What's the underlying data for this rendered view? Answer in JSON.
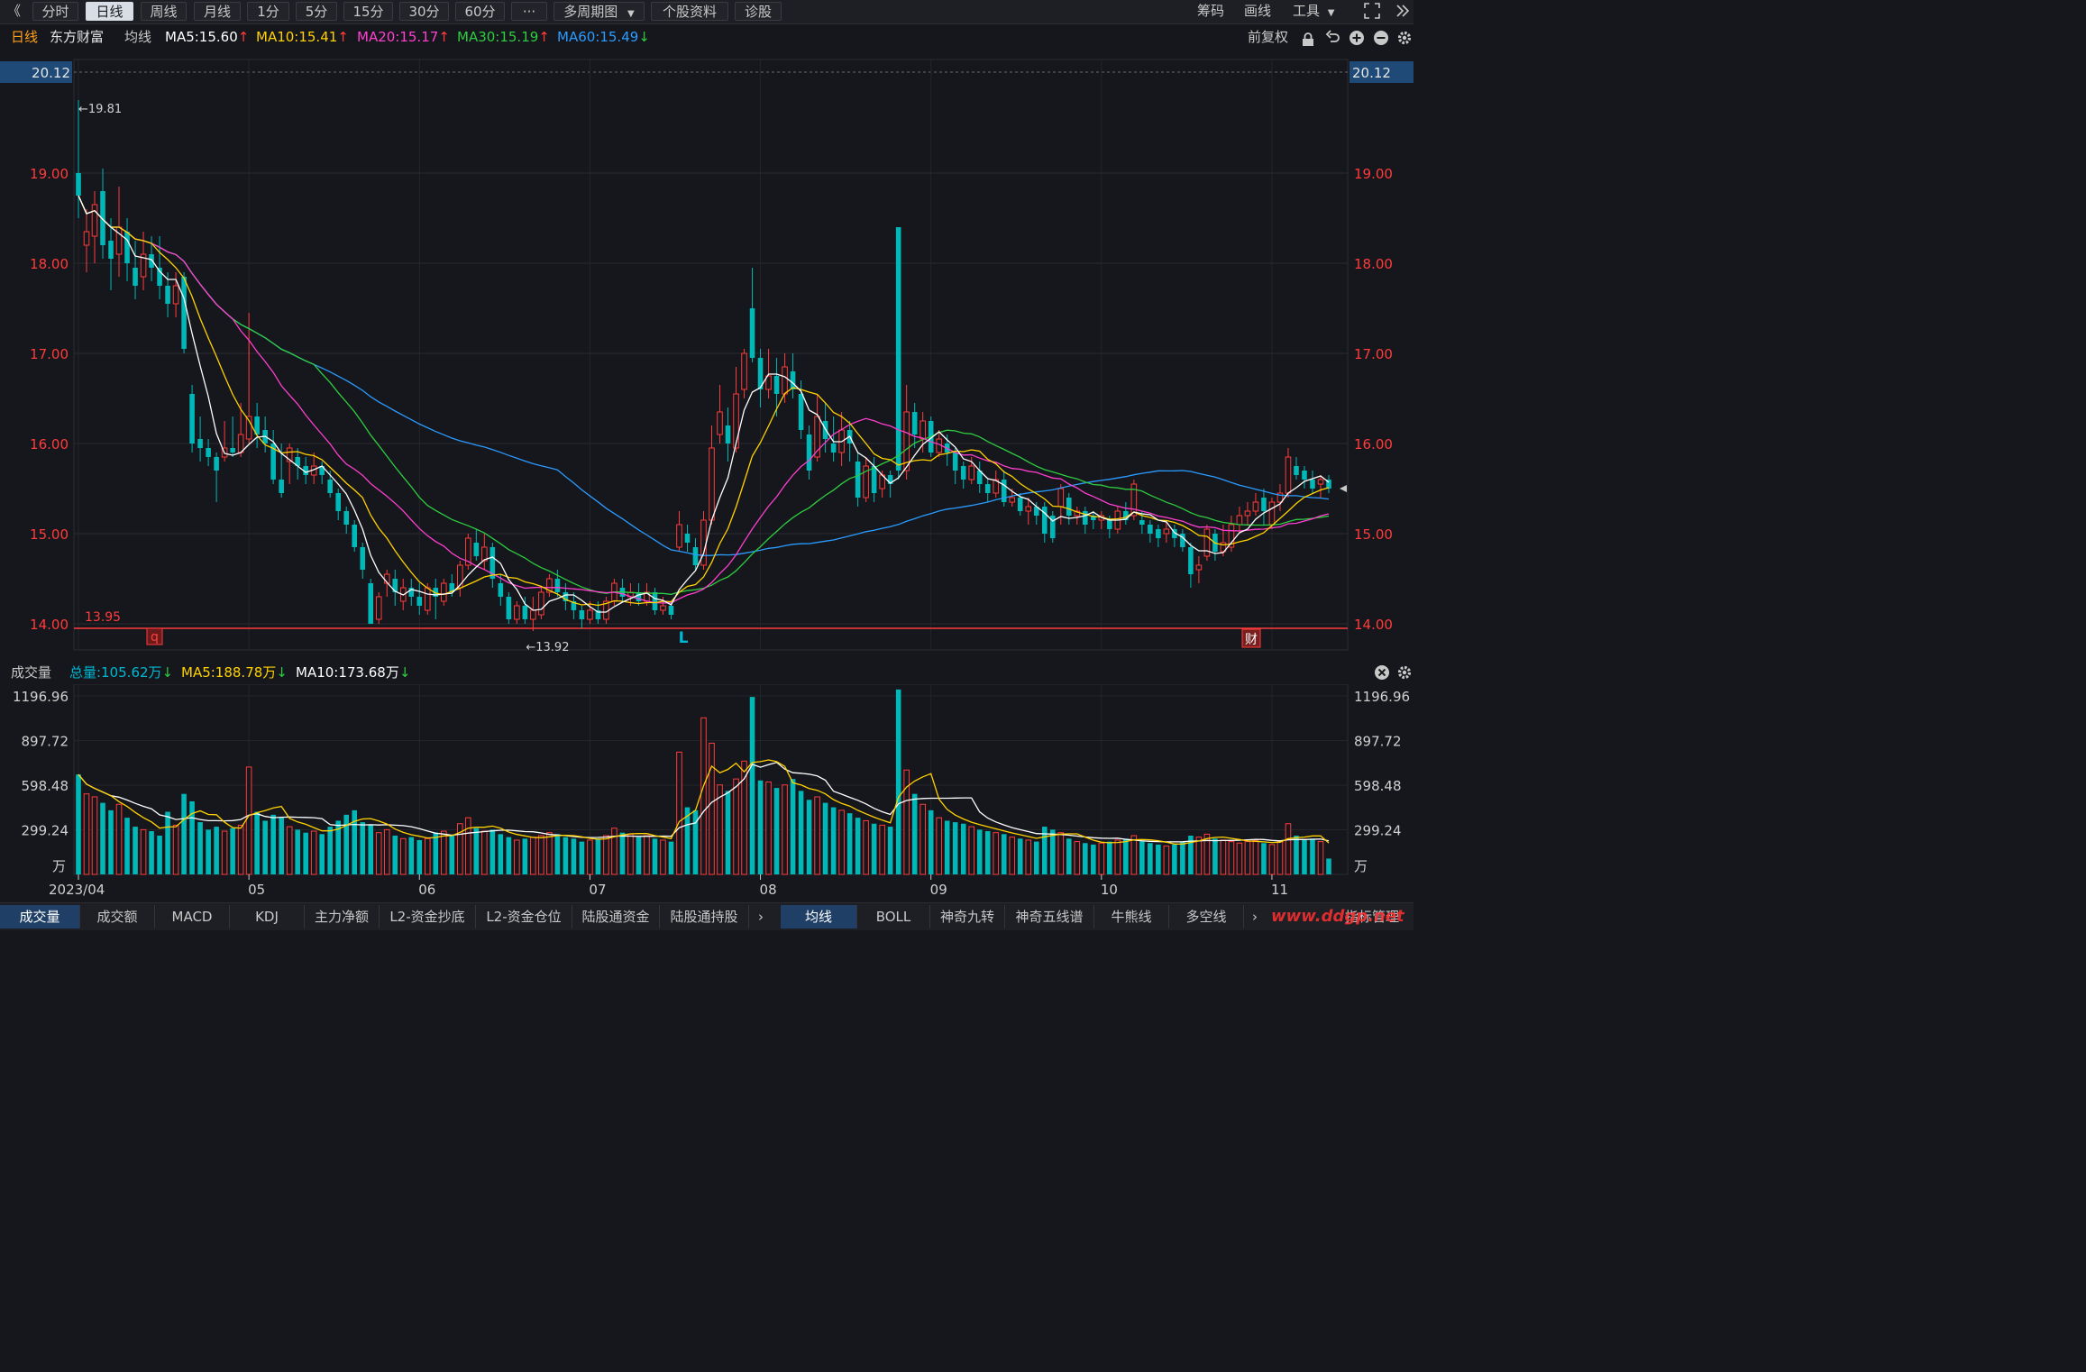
{
  "toolbar": {
    "left_nav": "《",
    "periods": [
      "分时",
      "日线",
      "周线",
      "月线",
      "1分",
      "5分",
      "15分",
      "30分",
      "60分"
    ],
    "more": "···",
    "multi_period": "多周期图",
    "stock_info": "个股资料",
    "diagnose": "诊股",
    "chips": "筹码",
    "draw_line": "画线",
    "tools": "工具"
  },
  "ma_row": {
    "period": "日线",
    "stock_name": "东方财富",
    "avg_label": "均线",
    "ma5": "MA5:15.60",
    "ma10": "MA10:15.41",
    "ma20": "MA20:15.17",
    "ma30": "MA30:15.19",
    "ma60": "MA60:15.49",
    "adjust": "前复权"
  },
  "price_axis": {
    "ticks": [
      "20.12",
      "19.00",
      "18.00",
      "17.00",
      "16.00",
      "15.00",
      "14.00"
    ],
    "current_right": "20.12"
  },
  "annotations": {
    "high": "←19.81",
    "low": "←13.92",
    "support": "13.95",
    "marker_q": "q",
    "marker_l": "L",
    "marker_cai": "财"
  },
  "vol_header": {
    "title": "成交量",
    "total": "总量:105.62万",
    "ma5": "MA5:188.78万",
    "ma10": "MA10:173.68万"
  },
  "vol_axis": {
    "ticks": [
      "1196.96",
      "897.72",
      "598.48",
      "299.24"
    ],
    "unit": "万"
  },
  "x_axis": {
    "labels": [
      "2023/04",
      "05",
      "06",
      "07",
      "08",
      "09",
      "10",
      "11"
    ]
  },
  "bottom_tabs_left": [
    "成交量",
    "成交额",
    "MACD",
    "KDJ",
    "主力净额",
    "L2-资金抄底",
    "L2-资金仓位",
    "陆股通资金",
    "陆股通持股"
  ],
  "bottom_tabs_right": [
    "均线",
    "BOLL",
    "神奇九转",
    "神奇五线谱",
    "牛熊线",
    "多空线",
    "指标管理"
  ],
  "watermark": "www.ddgp.net",
  "colors": {
    "up": "#ff3b3b",
    "down": "#00b8b8",
    "ma5": "#ffffff",
    "ma10": "#ffd200",
    "ma20": "#ff3fd0",
    "ma30": "#2ecc40",
    "ma60": "#2a9bff",
    "support_line": "#ff3b3b"
  },
  "chart_data": {
    "type": "candlestick",
    "title": "东方财富 日线",
    "x_start": "2023/04",
    "price_ylim": [
      13.5,
      20.12
    ],
    "volume_ylim": [
      0,
      1196.96
    ],
    "volume_unit": "万",
    "candles": [
      [
        19.0,
        18.75,
        19.81,
        18.5,
        670
      ],
      [
        18.2,
        18.35,
        18.6,
        17.9,
        540
      ],
      [
        18.3,
        18.65,
        18.8,
        18.0,
        520
      ],
      [
        18.8,
        18.2,
        19.05,
        18.05,
        480
      ],
      [
        18.25,
        18.05,
        18.5,
        17.7,
        430
      ],
      [
        18.1,
        18.4,
        18.85,
        17.85,
        470
      ],
      [
        18.35,
        18.0,
        18.5,
        17.8,
        380
      ],
      [
        17.95,
        17.75,
        18.25,
        17.6,
        320
      ],
      [
        17.85,
        18.1,
        18.35,
        17.7,
        300
      ],
      [
        18.1,
        17.95,
        18.3,
        17.8,
        290
      ],
      [
        17.95,
        17.75,
        18.3,
        17.6,
        260
      ],
      [
        17.75,
        17.55,
        17.9,
        17.4,
        420
      ],
      [
        17.55,
        17.75,
        17.9,
        17.4,
        330
      ],
      [
        17.85,
        17.05,
        17.9,
        17.0,
        540
      ],
      [
        16.55,
        16.0,
        16.65,
        15.9,
        490
      ],
      [
        16.05,
        15.95,
        16.3,
        15.8,
        350
      ],
      [
        15.95,
        15.85,
        16.05,
        15.75,
        300
      ],
      [
        15.85,
        15.7,
        15.9,
        15.35,
        320
      ],
      [
        15.85,
        15.95,
        16.25,
        15.8,
        290
      ],
      [
        15.95,
        15.9,
        16.3,
        15.85,
        310
      ],
      [
        15.9,
        16.1,
        16.45,
        15.85,
        330
      ],
      [
        16.05,
        16.3,
        17.45,
        16.0,
        720
      ],
      [
        16.3,
        16.1,
        16.45,
        15.95,
        420
      ],
      [
        16.15,
        16.0,
        16.3,
        15.9,
        360
      ],
      [
        16.0,
        15.6,
        16.15,
        15.55,
        400
      ],
      [
        15.6,
        15.45,
        16.0,
        15.4,
        380
      ],
      [
        15.8,
        15.95,
        16.0,
        15.55,
        320
      ],
      [
        15.85,
        15.75,
        15.95,
        15.6,
        300
      ],
      [
        15.75,
        15.65,
        15.85,
        15.55,
        280
      ],
      [
        15.65,
        15.75,
        15.9,
        15.55,
        290
      ],
      [
        15.75,
        15.65,
        15.8,
        15.55,
        270
      ],
      [
        15.6,
        15.45,
        15.7,
        15.4,
        320
      ],
      [
        15.45,
        15.25,
        15.5,
        15.15,
        360
      ],
      [
        15.25,
        15.1,
        15.3,
        15.0,
        400
      ],
      [
        15.1,
        14.85,
        15.15,
        14.8,
        430
      ],
      [
        14.85,
        14.6,
        14.9,
        14.5,
        350
      ],
      [
        14.45,
        14.0,
        14.5,
        14.0,
        330
      ],
      [
        14.05,
        14.3,
        14.35,
        14.0,
        280
      ],
      [
        14.45,
        14.55,
        14.6,
        14.3,
        300
      ],
      [
        14.5,
        14.35,
        14.6,
        14.2,
        260
      ],
      [
        14.25,
        14.4,
        14.5,
        14.15,
        240
      ],
      [
        14.4,
        14.3,
        14.5,
        14.2,
        250
      ],
      [
        14.3,
        14.2,
        14.45,
        14.1,
        230
      ],
      [
        14.15,
        14.4,
        14.45,
        14.1,
        240
      ],
      [
        14.4,
        14.3,
        14.5,
        14.05,
        280
      ],
      [
        14.25,
        14.45,
        14.5,
        14.2,
        290
      ],
      [
        14.45,
        14.35,
        14.55,
        14.3,
        260
      ],
      [
        14.4,
        14.65,
        14.7,
        14.3,
        340
      ],
      [
        14.65,
        14.95,
        15.0,
        14.6,
        380
      ],
      [
        14.9,
        14.75,
        15.05,
        14.7,
        310
      ],
      [
        14.7,
        14.85,
        15.0,
        14.6,
        290
      ],
      [
        14.85,
        14.5,
        14.9,
        14.4,
        300
      ],
      [
        14.45,
        14.3,
        14.55,
        14.2,
        270
      ],
      [
        14.3,
        14.05,
        14.35,
        14.0,
        250
      ],
      [
        14.05,
        14.2,
        14.25,
        14.0,
        230
      ],
      [
        14.2,
        14.05,
        14.3,
        14.0,
        240
      ],
      [
        14.05,
        14.15,
        14.3,
        13.92,
        250
      ],
      [
        14.1,
        14.35,
        14.4,
        14.05,
        260
      ],
      [
        14.35,
        14.5,
        14.55,
        14.3,
        280
      ],
      [
        14.5,
        14.35,
        14.6,
        14.3,
        270
      ],
      [
        14.35,
        14.25,
        14.45,
        14.15,
        250
      ],
      [
        14.25,
        14.15,
        14.35,
        14.05,
        240
      ],
      [
        14.15,
        14.05,
        14.2,
        13.95,
        220
      ],
      [
        14.05,
        14.15,
        14.25,
        14.0,
        230
      ],
      [
        14.15,
        14.05,
        14.25,
        14.0,
        240
      ],
      [
        14.05,
        14.25,
        14.3,
        14.0,
        260
      ],
      [
        14.25,
        14.45,
        14.5,
        14.2,
        310
      ],
      [
        14.4,
        14.3,
        14.5,
        14.25,
        280
      ],
      [
        14.3,
        14.35,
        14.45,
        14.2,
        270
      ],
      [
        14.35,
        14.25,
        14.45,
        14.2,
        250
      ],
      [
        14.25,
        14.35,
        14.45,
        14.2,
        260
      ],
      [
        14.35,
        14.15,
        14.4,
        14.1,
        240
      ],
      [
        14.15,
        14.2,
        14.3,
        14.1,
        230
      ],
      [
        14.2,
        14.1,
        14.25,
        14.05,
        220
      ],
      [
        14.85,
        15.1,
        15.25,
        14.8,
        820
      ],
      [
        15.0,
        14.9,
        15.1,
        14.8,
        450
      ],
      [
        14.85,
        14.65,
        14.95,
        14.6,
        430
      ],
      [
        14.65,
        15.15,
        15.25,
        14.6,
        1050
      ],
      [
        15.15,
        15.95,
        16.2,
        15.1,
        880
      ],
      [
        16.1,
        16.35,
        16.65,
        16.0,
        600
      ],
      [
        16.2,
        16.0,
        16.4,
        15.8,
        560
      ],
      [
        15.95,
        16.55,
        16.85,
        15.9,
        640
      ],
      [
        16.6,
        17.0,
        17.05,
        16.5,
        760
      ],
      [
        17.5,
        16.95,
        17.95,
        16.9,
        1190
      ],
      [
        16.95,
        16.6,
        17.05,
        16.4,
        630
      ],
      [
        16.6,
        16.75,
        17.05,
        16.5,
        620
      ],
      [
        16.75,
        16.55,
        16.95,
        16.3,
        580
      ],
      [
        16.55,
        16.85,
        17.0,
        16.45,
        600
      ],
      [
        16.8,
        16.6,
        17.0,
        16.5,
        640
      ],
      [
        16.55,
        16.15,
        16.7,
        16.05,
        560
      ],
      [
        16.1,
        15.7,
        16.2,
        15.6,
        500
      ],
      [
        15.85,
        16.3,
        16.55,
        15.8,
        520
      ],
      [
        16.25,
        16.05,
        16.45,
        15.9,
        480
      ],
      [
        16.0,
        15.9,
        16.3,
        15.8,
        450
      ],
      [
        15.9,
        16.15,
        16.35,
        15.75,
        430
      ],
      [
        16.15,
        16.0,
        16.25,
        15.8,
        410
      ],
      [
        15.8,
        15.4,
        15.9,
        15.3,
        380
      ],
      [
        15.4,
        15.75,
        15.85,
        15.35,
        360
      ],
      [
        15.75,
        15.45,
        15.85,
        15.35,
        340
      ],
      [
        15.5,
        15.65,
        15.7,
        15.4,
        330
      ],
      [
        15.65,
        15.55,
        15.7,
        15.4,
        320
      ],
      [
        18.4,
        15.7,
        18.4,
        15.6,
        1240
      ],
      [
        15.7,
        16.35,
        16.65,
        15.6,
        700
      ],
      [
        16.35,
        16.1,
        16.45,
        15.95,
        540
      ],
      [
        16.05,
        16.25,
        16.35,
        15.9,
        470
      ],
      [
        16.25,
        15.9,
        16.3,
        15.85,
        430
      ],
      [
        15.9,
        16.05,
        16.15,
        15.85,
        380
      ],
      [
        16.0,
        15.9,
        16.1,
        15.75,
        360
      ],
      [
        15.9,
        15.7,
        15.95,
        15.55,
        350
      ],
      [
        15.75,
        15.6,
        15.8,
        15.5,
        340
      ],
      [
        15.6,
        15.75,
        15.85,
        15.55,
        320
      ],
      [
        15.7,
        15.55,
        15.8,
        15.45,
        300
      ],
      [
        15.55,
        15.45,
        15.6,
        15.35,
        290
      ],
      [
        15.45,
        15.6,
        15.7,
        15.4,
        280
      ],
      [
        15.6,
        15.35,
        15.7,
        15.3,
        270
      ],
      [
        15.35,
        15.4,
        15.5,
        15.3,
        250
      ],
      [
        15.4,
        15.25,
        15.45,
        15.2,
        240
      ],
      [
        15.25,
        15.3,
        15.4,
        15.1,
        230
      ],
      [
        15.3,
        15.2,
        15.35,
        15.1,
        220
      ],
      [
        15.3,
        15.0,
        15.35,
        14.9,
        320
      ],
      [
        15.2,
        14.95,
        15.25,
        14.9,
        300
      ],
      [
        15.3,
        15.5,
        15.55,
        15.1,
        280
      ],
      [
        15.4,
        15.2,
        15.45,
        15.1,
        240
      ],
      [
        15.2,
        15.25,
        15.3,
        15.1,
        220
      ],
      [
        15.25,
        15.1,
        15.3,
        15.0,
        210
      ],
      [
        15.2,
        15.15,
        15.25,
        15.05,
        200
      ],
      [
        15.15,
        15.2,
        15.25,
        15.05,
        210
      ],
      [
        15.15,
        15.05,
        15.2,
        14.95,
        220
      ],
      [
        15.05,
        15.25,
        15.3,
        15.0,
        230
      ],
      [
        15.25,
        15.15,
        15.35,
        15.1,
        240
      ],
      [
        15.2,
        15.55,
        15.6,
        15.15,
        260
      ],
      [
        15.15,
        15.1,
        15.25,
        15.0,
        220
      ],
      [
        15.1,
        15.0,
        15.15,
        14.9,
        210
      ],
      [
        15.05,
        14.95,
        15.1,
        14.85,
        200
      ],
      [
        15.0,
        15.05,
        15.15,
        14.9,
        190
      ],
      [
        15.05,
        14.95,
        15.1,
        14.85,
        200
      ],
      [
        15.0,
        14.85,
        15.05,
        14.8,
        220
      ],
      [
        14.85,
        14.55,
        14.9,
        14.4,
        260
      ],
      [
        14.6,
        14.65,
        14.75,
        14.45,
        250
      ],
      [
        14.75,
        15.05,
        15.1,
        14.7,
        270
      ],
      [
        15.0,
        14.8,
        15.05,
        14.7,
        240
      ],
      [
        14.8,
        14.9,
        15.1,
        14.75,
        230
      ],
      [
        14.85,
        15.1,
        15.2,
        14.8,
        220
      ],
      [
        15.1,
        15.2,
        15.3,
        15.0,
        210
      ],
      [
        15.2,
        15.25,
        15.35,
        15.1,
        220
      ],
      [
        15.25,
        15.35,
        15.45,
        15.2,
        230
      ],
      [
        15.4,
        15.25,
        15.5,
        15.1,
        210
      ],
      [
        15.1,
        15.35,
        15.4,
        15.05,
        200
      ],
      [
        15.35,
        15.45,
        15.55,
        15.25,
        220
      ],
      [
        15.45,
        15.85,
        15.95,
        15.4,
        340
      ],
      [
        15.75,
        15.65,
        15.85,
        15.6,
        260
      ],
      [
        15.7,
        15.6,
        15.75,
        15.5,
        230
      ],
      [
        15.6,
        15.5,
        15.7,
        15.45,
        240
      ],
      [
        15.55,
        15.6,
        15.65,
        15.4,
        220
      ],
      [
        15.6,
        15.5,
        15.65,
        15.45,
        106
      ]
    ]
  }
}
